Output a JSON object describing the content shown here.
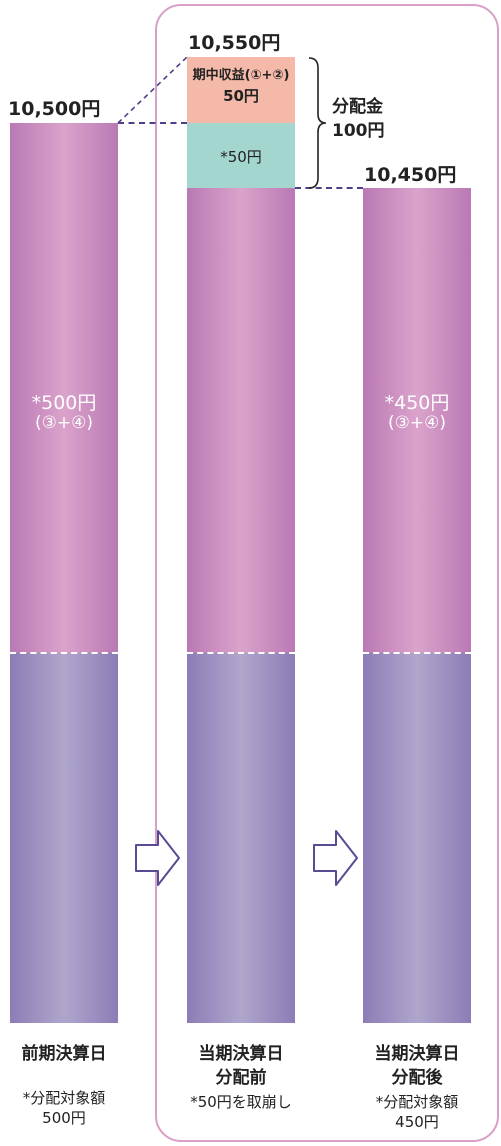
{
  "bars": [
    {
      "top_value": "10,500円",
      "inner_value": "*500円",
      "inner_sub": "(③+④)",
      "label_lines": [
        "前期決算日"
      ],
      "note_lines": [
        "*分配対象額",
        "500円"
      ]
    },
    {
      "top_value": "10,550円",
      "income_line1": "期中収益(①+②)",
      "income_line2": "50円",
      "teal_value": "*50円",
      "label_lines": [
        "当期決算日",
        "分配前"
      ],
      "note_lines": [
        "*50円を取崩し"
      ]
    },
    {
      "top_value": "10,450円",
      "inner_value": "*450円",
      "inner_sub": "(③+④)",
      "label_lines": [
        "当期決算日",
        "分配後"
      ],
      "note_lines": [
        "*分配対象額",
        "450円"
      ]
    }
  ],
  "distribution": {
    "line1": "分配金",
    "line2": "100円"
  },
  "colors": {
    "frame": "#d8a0c4",
    "pink_segment": "#c98abf",
    "purple_segment": "#9a8cc0",
    "income_segment": "#f4b9a8",
    "teal_segment": "#a3d6cf",
    "dash_line": "#4e3f8a",
    "arrow_stroke": "#5a4a94"
  },
  "icons": [
    "arrow-right-icon",
    "arrow-right-icon",
    "brace-icon"
  ]
}
